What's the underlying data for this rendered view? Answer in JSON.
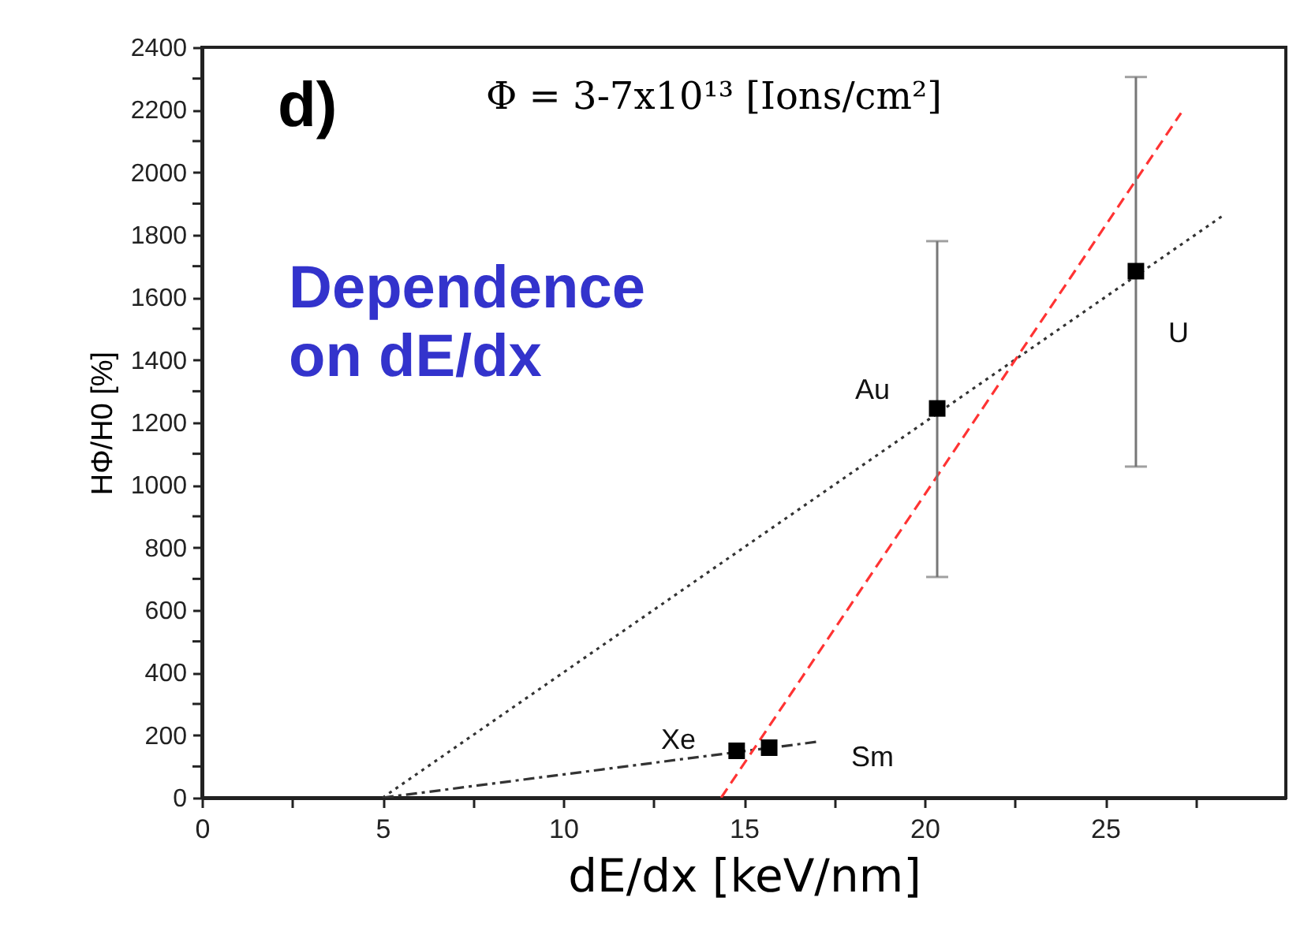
{
  "chart_data": {
    "type": "scatter",
    "xlabel": "dE/dx [keV/nm]",
    "ylabel": "HΦ/H0 [%]",
    "xlim": [
      0,
      30
    ],
    "ylim": [
      0,
      2400
    ],
    "xticks": [
      0,
      {
        "value": 2.5,
        "label": null
      },
      5,
      {
        "value": 7.5,
        "label": null
      },
      10,
      {
        "value": 12.5,
        "label": null
      },
      15,
      {
        "value": 17.5,
        "label": null
      },
      20,
      {
        "value": 22.5,
        "label": null
      },
      25,
      {
        "value": 27.5,
        "label": null
      }
    ],
    "yticks": [
      0,
      {
        "value": 100,
        "label": null
      },
      200,
      {
        "value": 300,
        "label": null
      },
      400,
      {
        "value": 500,
        "label": null
      },
      600,
      {
        "value": 700,
        "label": null
      },
      800,
      {
        "value": 900,
        "label": null
      },
      1000,
      {
        "value": 1100,
        "label": null
      },
      1200,
      {
        "value": 1300,
        "label": null
      },
      1400,
      {
        "value": 1500,
        "label": null
      },
      1600,
      {
        "value": 1700,
        "label": null
      },
      1800,
      {
        "value": 1900,
        "label": null
      },
      2000,
      {
        "value": 2100,
        "label": null
      },
      2200,
      {
        "value": 2300,
        "label": null
      },
      2400
    ],
    "grid": false,
    "series": [
      {
        "type": "line",
        "color": "#333333",
        "line_style": "dotted",
        "marker": "none",
        "x": [
          5,
          28.25
        ],
        "values": [
          0,
          1861
        ]
      },
      {
        "type": "line",
        "color": "#333333",
        "line_style": "dashed",
        "marker": "none",
        "x": [
          5,
          17.1
        ],
        "values": [
          0,
          180
        ]
      },
      {
        "type": "line",
        "color": "#ff3333",
        "line_style": "dashed",
        "marker": "none",
        "x": [
          14.37,
          27.1
        ],
        "values": [
          0,
          2190
        ]
      },
      {
        "color": "#000000",
        "marker": "square",
        "x": [
          14.8,
          15.7,
          20.35,
          25.85
        ],
        "values": [
          150,
          160,
          1245,
          1684
        ],
        "errors": [
          null,
          null,
          [
            706,
            1780
          ],
          [
            1059,
            2305
          ]
        ]
      }
    ],
    "annotations": [
      "d)",
      "Φ = 3-7x10¹³ [Ions/cm²]",
      "Dependence\non dE/dx",
      "Xe",
      "Sm",
      "Au",
      "U"
    ]
  }
}
